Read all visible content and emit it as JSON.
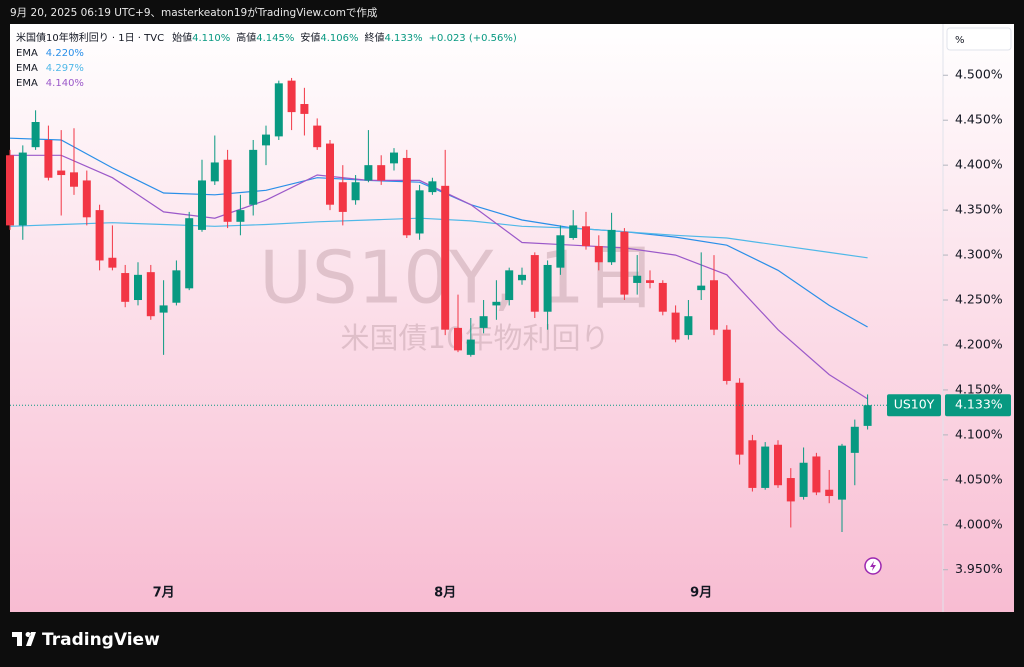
{
  "caption": "9月 20, 2025 06:19 UTC+9、masterkeaton19がTradingView.comで作成",
  "logo": "TradingView",
  "chart_data": {
    "type": "candlestick",
    "title": "米国債10年物利回り · 1日 · TVC",
    "ohlc_header": {
      "labels": [
        "始値",
        "高値",
        "安値",
        "終値"
      ],
      "values": [
        "4.110%",
        "4.145%",
        "4.106%",
        "4.133%"
      ],
      "change": "+0.023 (+0.56%)"
    },
    "unit_button": "%",
    "watermark": {
      "symbol": "US10Y, 1日",
      "name": "米国債10年物利回り"
    },
    "categories": [
      null,
      null,
      null,
      null,
      null,
      null,
      null,
      null,
      null,
      null,
      null,
      null,
      "7月",
      null,
      null,
      null,
      null,
      null,
      null,
      null,
      null,
      null,
      null,
      null,
      null,
      null,
      null,
      null,
      null,
      null,
      null,
      null,
      null,
      null,
      "8月",
      null,
      null,
      null,
      null,
      null,
      null,
      null,
      null,
      null,
      null,
      null,
      null,
      null,
      null,
      null,
      null,
      null,
      null,
      null,
      "9月",
      null,
      null,
      null,
      null,
      null,
      null,
      null,
      null,
      null,
      null,
      null,
      null,
      null
    ],
    "open": [
      4.411,
      4.333,
      4.42,
      4.428,
      4.394,
      4.392,
      4.383,
      4.35,
      4.297,
      4.28,
      4.25,
      4.281,
      4.236,
      4.247,
      4.263,
      4.328,
      4.382,
      4.406,
      4.337,
      4.356,
      4.422,
      4.432,
      4.494,
      4.468,
      4.444,
      4.424,
      4.381,
      4.361,
      4.383,
      4.4,
      4.402,
      4.408,
      4.324,
      4.37,
      4.377,
      4.219,
      4.189,
      4.219,
      4.244,
      4.25,
      4.272,
      4.3,
      4.237,
      4.286,
      4.319,
      4.332,
      4.31,
      4.292,
      4.326,
      4.269,
      4.272,
      4.269,
      4.236,
      4.211,
      4.261,
      4.272,
      4.217,
      4.158,
      4.094,
      4.041,
      4.089,
      4.052,
      4.031,
      4.076,
      4.039,
      4.028,
      4.08,
      4.11
    ],
    "high": [
      4.417,
      4.422,
      4.461,
      4.444,
      4.439,
      4.441,
      4.394,
      4.356,
      4.333,
      4.289,
      4.292,
      4.289,
      4.272,
      4.294,
      4.348,
      4.406,
      4.433,
      4.417,
      4.367,
      4.428,
      4.444,
      4.494,
      4.497,
      4.486,
      4.452,
      4.428,
      4.4,
      4.389,
      4.439,
      4.411,
      4.419,
      4.417,
      4.378,
      4.386,
      4.417,
      4.256,
      4.23,
      4.25,
      4.272,
      4.286,
      4.286,
      4.303,
      4.294,
      4.333,
      4.35,
      4.348,
      4.322,
      4.347,
      4.33,
      4.3,
      4.283,
      4.272,
      4.244,
      4.25,
      4.303,
      4.3,
      4.222,
      4.163,
      4.1,
      4.092,
      4.094,
      4.063,
      4.086,
      4.08,
      4.061,
      4.09,
      4.117,
      4.145
    ],
    "low": [
      4.328,
      4.317,
      4.417,
      4.383,
      4.344,
      4.367,
      4.333,
      4.283,
      4.283,
      4.242,
      4.244,
      4.228,
      4.189,
      4.244,
      4.261,
      4.326,
      4.378,
      4.33,
      4.322,
      4.344,
      4.4,
      4.428,
      4.439,
      4.433,
      4.417,
      4.35,
      4.333,
      4.356,
      4.381,
      4.378,
      4.394,
      4.319,
      4.317,
      4.367,
      4.211,
      4.192,
      4.187,
      4.213,
      4.228,
      4.244,
      4.267,
      4.23,
      4.217,
      4.278,
      4.317,
      4.306,
      4.283,
      4.289,
      4.25,
      4.256,
      4.263,
      4.233,
      4.203,
      4.206,
      4.25,
      4.211,
      4.156,
      4.067,
      4.037,
      4.039,
      4.041,
      3.997,
      4.028,
      4.033,
      4.024,
      3.992,
      4.044,
      4.106
    ],
    "close": [
      4.333,
      4.414,
      4.448,
      4.386,
      4.389,
      4.376,
      4.342,
      4.294,
      4.286,
      4.248,
      4.278,
      4.232,
      4.244,
      4.283,
      4.341,
      4.383,
      4.403,
      4.337,
      4.35,
      4.417,
      4.434,
      4.491,
      4.459,
      4.457,
      4.42,
      4.356,
      4.348,
      4.381,
      4.4,
      4.383,
      4.414,
      4.322,
      4.372,
      4.382,
      4.217,
      4.194,
      4.206,
      4.232,
      4.248,
      4.283,
      4.278,
      4.237,
      4.289,
      4.322,
      4.333,
      4.31,
      4.292,
      4.328,
      4.256,
      4.277,
      4.269,
      4.237,
      4.206,
      4.232,
      4.266,
      4.217,
      4.16,
      4.078,
      4.041,
      4.087,
      4.044,
      4.026,
      4.069,
      4.036,
      4.032,
      4.088,
      4.109,
      4.133
    ],
    "colors": {
      "up": "#089981",
      "down": "#f23645"
    },
    "series": [
      {
        "name": "EMA",
        "legend_value": "4.220%",
        "color": "#2a8fe8",
        "x": [
          0,
          4,
          8,
          12,
          16,
          20,
          24,
          28,
          32,
          36,
          40,
          44,
          48,
          52,
          56,
          60,
          64,
          67
        ],
        "values": [
          4.43,
          4.428,
          4.397,
          4.369,
          4.367,
          4.372,
          4.386,
          4.383,
          4.381,
          4.356,
          4.339,
          4.33,
          4.326,
          4.32,
          4.311,
          4.283,
          4.244,
          4.22
        ]
      },
      {
        "name": "EMA",
        "legend_value": "4.297%",
        "color": "#4fb8e8",
        "x": [
          0,
          4,
          8,
          12,
          16,
          20,
          24,
          28,
          32,
          36,
          40,
          44,
          48,
          52,
          56,
          60,
          64,
          67
        ],
        "values": [
          4.332,
          4.334,
          4.336,
          4.334,
          4.332,
          4.334,
          4.337,
          4.339,
          4.341,
          4.338,
          4.332,
          4.33,
          4.326,
          4.322,
          4.319,
          4.311,
          4.303,
          4.297
        ]
      },
      {
        "name": "EMA",
        "legend_value": "4.140%",
        "color": "#9b59c9",
        "x": [
          0,
          4,
          8,
          12,
          16,
          20,
          24,
          28,
          32,
          36,
          40,
          44,
          48,
          52,
          56,
          60,
          64,
          67
        ],
        "values": [
          4.411,
          4.411,
          4.386,
          4.348,
          4.341,
          4.361,
          4.389,
          4.383,
          4.383,
          4.356,
          4.314,
          4.311,
          4.308,
          4.3,
          4.278,
          4.217,
          4.167,
          4.14
        ]
      }
    ],
    "last_price": {
      "symbol": "US10Y",
      "value": 4.133,
      "label": "4.133%"
    },
    "ylim": [
      3.903,
      4.557
    ],
    "yticks": [
      {
        "value": 4.5,
        "label": "4.500%"
      },
      {
        "value": 4.45,
        "label": "4.450%"
      },
      {
        "value": 4.4,
        "label": "4.400%"
      },
      {
        "value": 4.35,
        "label": "4.350%"
      },
      {
        "value": 4.3,
        "label": "4.300%"
      },
      {
        "value": 4.25,
        "label": "4.250%"
      },
      {
        "value": 4.2,
        "label": "4.200%"
      },
      {
        "value": 4.15,
        "label": "4.150%"
      },
      {
        "value": 4.1,
        "label": "4.100%"
      },
      {
        "value": 4.05,
        "label": "4.050%"
      },
      {
        "value": 4.0,
        "label": "4.000%"
      },
      {
        "value": 3.95,
        "label": "3.950%"
      }
    ]
  }
}
